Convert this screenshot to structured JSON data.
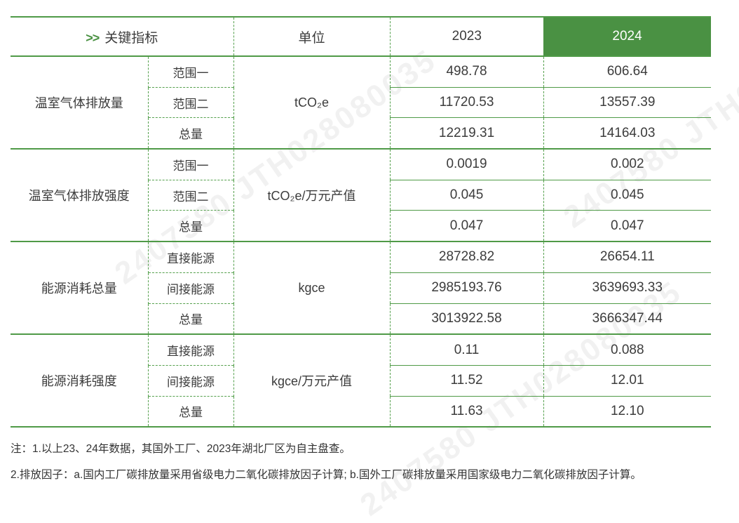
{
  "header": {
    "indicator_prefix": ">>",
    "indicator_label": "关键指标",
    "unit_label": "单位",
    "col_2023": "2023",
    "col_2024": "2024"
  },
  "groups": [
    {
      "name": "温室气体排放量",
      "unit": "tCO₂e",
      "rows": [
        {
          "label": "范围一",
          "v2023": "498.78",
          "v2024": "606.64"
        },
        {
          "label": "范围二",
          "v2023": "11720.53",
          "v2024": "13557.39"
        },
        {
          "label": "总量",
          "v2023": "12219.31",
          "v2024": "14164.03"
        }
      ]
    },
    {
      "name": "温室气体排放强度",
      "unit": "tCO₂e/万元产值",
      "rows": [
        {
          "label": "范围一",
          "v2023": "0.0019",
          "v2024": "0.002"
        },
        {
          "label": "范围二",
          "v2023": "0.045",
          "v2024": "0.045"
        },
        {
          "label": "总量",
          "v2023": "0.047",
          "v2024": "0.047"
        }
      ]
    },
    {
      "name": "能源消耗总量",
      "unit": "kgce",
      "rows": [
        {
          "label": "直接能源",
          "v2023": "28728.82",
          "v2024": "26654.11"
        },
        {
          "label": "间接能源",
          "v2023": "2985193.76",
          "v2024": "3639693.33"
        },
        {
          "label": "总量",
          "v2023": "3013922.58",
          "v2024": "3666347.44"
        }
      ]
    },
    {
      "name": "能源消耗强度",
      "unit": "kgce/万元产值",
      "rows": [
        {
          "label": "直接能源",
          "v2023": "0.11",
          "v2024": "0.088"
        },
        {
          "label": "间接能源",
          "v2023": "11.52",
          "v2024": "12.01"
        },
        {
          "label": "总量",
          "v2023": "11.63",
          "v2024": "12.10"
        }
      ]
    }
  ],
  "notes": {
    "line1": "注：1.以上23、24年数据，其国外工厂、2023年湖北厂区为自主盘查。",
    "line2": "2.排放因子：a.国内工厂碳排放量采用省级电力二氧化碳排放因子计算; b.国外工厂碳排放量采用国家级电力二氧化碳排放因子计算。"
  },
  "watermark": {
    "text": "2407580 JTH028080035"
  },
  "colors": {
    "accent_green": "#4a9143",
    "line_green": "#4f9a47",
    "text": "#3c3c3c"
  }
}
